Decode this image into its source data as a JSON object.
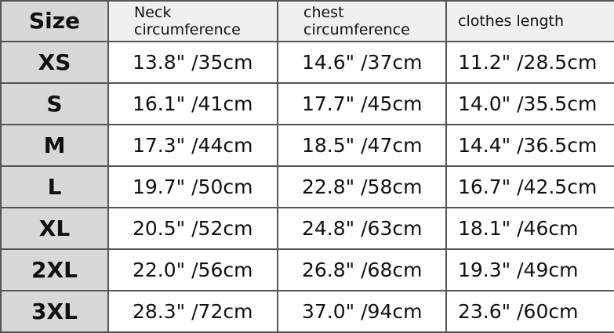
{
  "headers": [
    "Size",
    "Neck circumference",
    "chest circumference",
    "clothes length"
  ],
  "rows": [
    [
      "XS",
      "13.8\" /35cm",
      "14.6\" /37cm",
      "11.2\" /28.5cm"
    ],
    [
      "S",
      "16.1\" /41cm",
      "17.7\" /45cm",
      "14.0\" /35.5cm"
    ],
    [
      "M",
      "17.3\" /44cm",
      "18.5\" /47cm",
      "14.4\" /36.5cm"
    ],
    [
      "L",
      "19.7\" /50cm",
      "22.8\" /58cm",
      "16.7\" /42.5cm"
    ],
    [
      "XL",
      "20.5\" /52cm",
      "24.8\" /63cm",
      "18.1\" /46cm"
    ],
    [
      "2XL",
      "22.0\" /56cm",
      "26.8\" /68cm",
      "19.3\" /49cm"
    ],
    [
      "3XL",
      "28.3\" /72cm",
      "37.0\" /94cm",
      "23.6\" /60cm"
    ]
  ]
}
